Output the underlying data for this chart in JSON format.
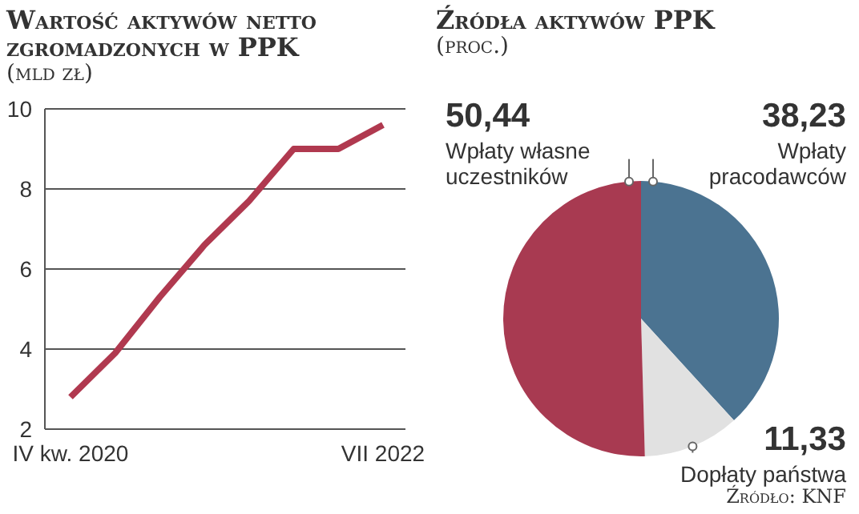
{
  "chart_data": [
    {
      "type": "line",
      "title": "Wartość aktywów netto zgromadzonych w PPK",
      "subtitle": "(mld zł)",
      "categories": [
        "IV kw. 2020",
        null,
        null,
        null,
        null,
        null,
        null,
        "VII 2022"
      ],
      "series": [
        {
          "color": "#b0394f",
          "values": [
            2.8,
            3.9,
            5.3,
            6.6,
            7.7,
            9.0,
            9.0,
            9.6
          ]
        }
      ],
      "ylim": [
        2,
        10
      ],
      "yticks": [
        2,
        4,
        6,
        8,
        10
      ],
      "grid": "y"
    },
    {
      "type": "pie",
      "title": "Źródła aktywów PPK",
      "subtitle": "(proc.)",
      "categories": [
        "Wpłaty pracodawców",
        "Dopłaty państwa",
        "Wpłaty własne uczestników"
      ],
      "values": [
        38.23,
        11.33,
        50.44
      ],
      "value_labels": [
        "38,23",
        "11,33",
        "50,44"
      ],
      "colors": [
        "#4b7391",
        "#e1e1e1",
        "#a83a51"
      ],
      "annotations": [
        "Źródło: KNF"
      ]
    }
  ]
}
